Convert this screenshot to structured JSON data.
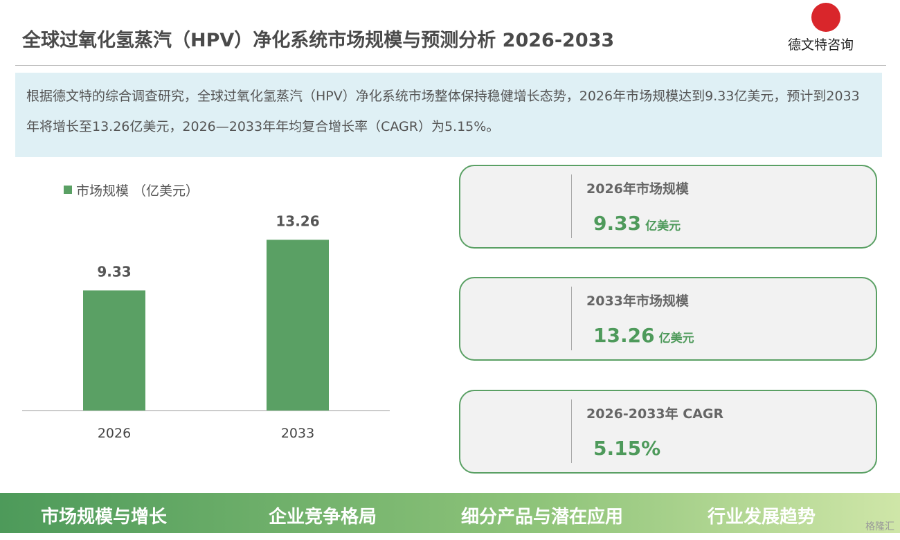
{
  "header": {
    "title": "全球过氧化氢蒸汽（HPV）净化系统市场规模与预测分析 2026-2033",
    "logo": "德文特咨询"
  },
  "summary": "根据德文特的综合调查研究，全球过氧化氢蒸汽（HPV）净化系统市场整体保持稳健增长态势，2026年市场规模达到9.33亿美元，预计到2033年将增长至13.26亿美元，2026—2033年年均复合增长率（CAGR）为5.15%。",
  "chart_data": {
    "type": "bar",
    "categories": [
      "2026",
      "2033"
    ],
    "series": [
      {
        "name": "市场规模 （亿美元）",
        "color": "#5aa064",
        "values": [
          9.33,
          13.26
        ]
      }
    ]
  },
  "cards": [
    {
      "label": "2026年市场规模",
      "value": "9.33",
      "unit": "亿美元"
    },
    {
      "label": "2033年市场规模",
      "value": "13.26",
      "unit": "亿美元"
    },
    {
      "label": "2026-2033年 CAGR",
      "value": "5.15%"
    }
  ],
  "footer_tabs": [
    "市场规模与增长",
    "企业竞争格局",
    "细分产品与潜在应用",
    "行业发展趋势"
  ],
  "watermark": "格隆汇"
}
